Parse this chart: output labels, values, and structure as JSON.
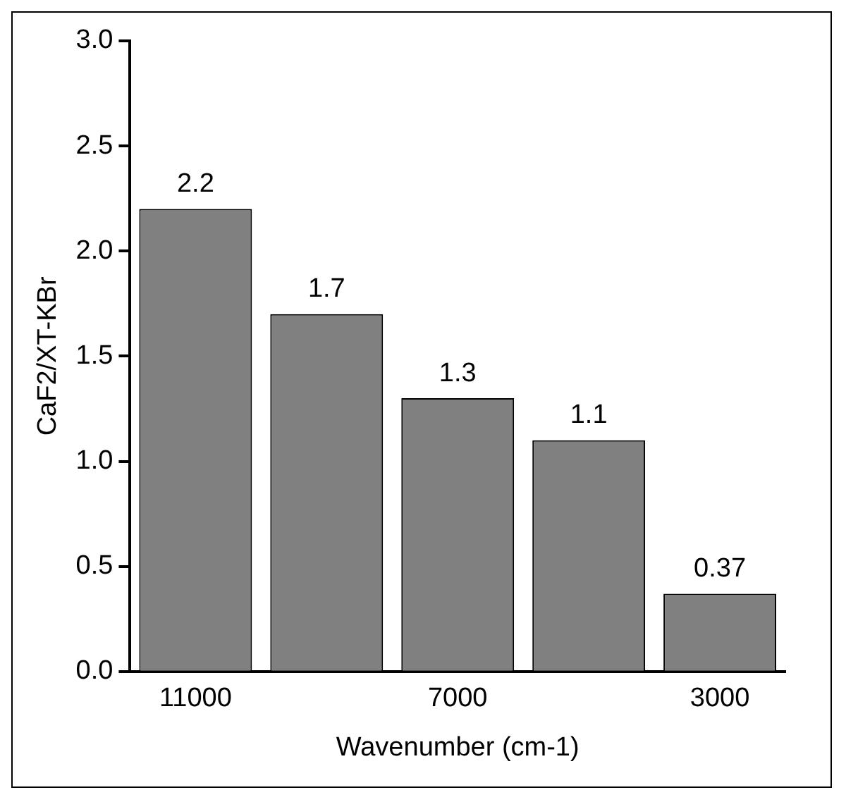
{
  "chart_data": {
    "type": "bar",
    "xlabel": "Wavenumber (cm-1)",
    "ylabel": "CaF2/XT-KBr",
    "categories": [
      "11000",
      null,
      "7000",
      null,
      "3000"
    ],
    "values": [
      2.2,
      1.7,
      1.3,
      1.1,
      0.37
    ],
    "color": "#808080",
    "ylim": [
      0,
      3
    ],
    "yticks": [
      {
        "value": 0,
        "label": "0.0"
      },
      0.5,
      {
        "value": 1,
        "label": "1.0"
      },
      1.5,
      {
        "value": 2,
        "label": "2.0"
      },
      2.5,
      {
        "value": 3,
        "label": "3.0"
      }
    ],
    "data_labels": true,
    "grid": false,
    "legend": false
  }
}
